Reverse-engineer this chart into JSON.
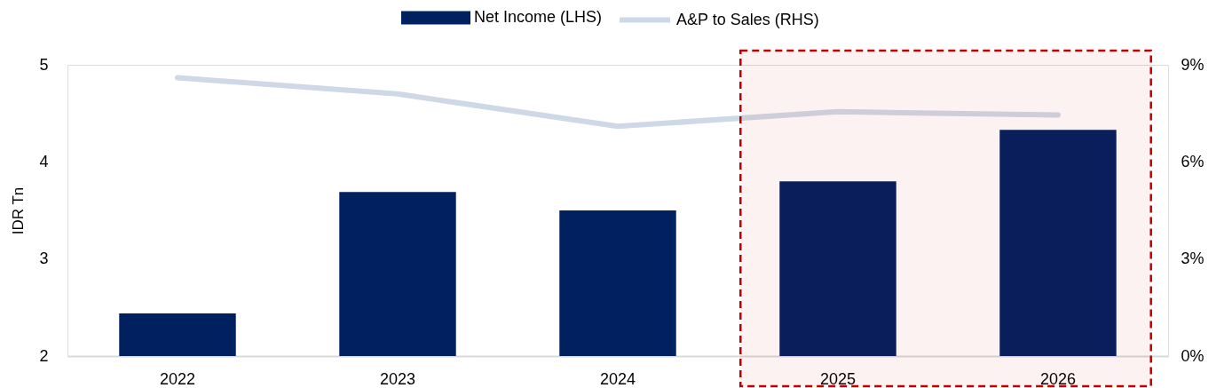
{
  "chart_data": {
    "type": "bar",
    "categories": [
      "2022",
      "2023",
      "2024",
      "2025",
      "2026"
    ],
    "series": [
      {
        "name": "Net Income (LHS)",
        "color": "#002060",
        "values": [
          2.44,
          3.69,
          3.5,
          3.8,
          4.33
        ]
      },
      {
        "name": "A&P to Sales (RHS)",
        "type": "line",
        "axis": "y2",
        "color": "#cfd8e6",
        "values": [
          8.6,
          8.1,
          7.1,
          7.55,
          7.45
        ]
      }
    ],
    "ylabel": "IDR Tn",
    "ylim": [
      2,
      5
    ],
    "yticks": [
      2,
      3,
      4,
      5
    ],
    "y2lim": [
      0,
      9
    ],
    "y2ticks": [
      {
        "value": 0,
        "label": "0%"
      },
      {
        "value": 3,
        "label": "3%"
      },
      {
        "value": 6,
        "label": "6%"
      },
      {
        "value": 9,
        "label": "9%"
      }
    ],
    "bands": [
      {
        "axis": "x",
        "from": "2025",
        "to": "2026",
        "color": "#c00000"
      }
    ],
    "legend": "top"
  }
}
